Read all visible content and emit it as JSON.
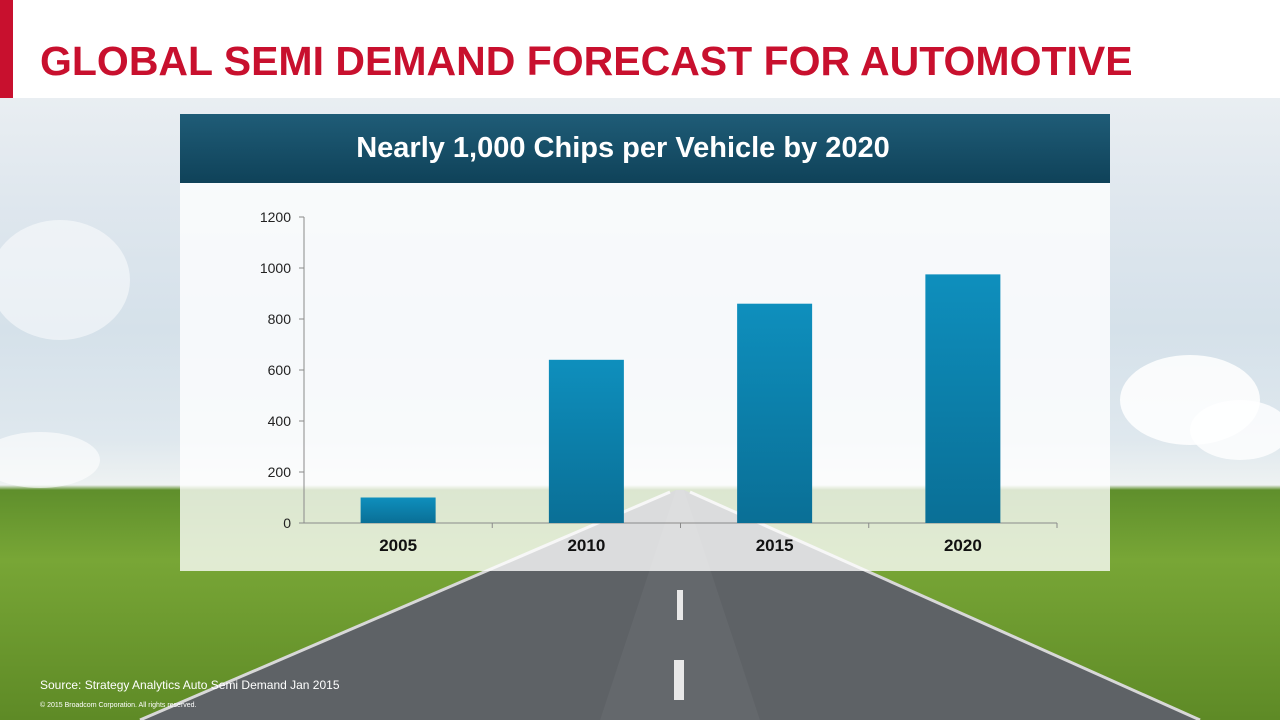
{
  "slide": {
    "title": "GLOBAL SEMI DEMAND FORECAST FOR AUTOMOTIVE",
    "source": "Source: Strategy Analytics Auto Semi Demand Jan 2015",
    "copyright": "© 2015 Broadcom Corporation.   All rights reserved.",
    "accent_color": "#c8102e"
  },
  "chart_data": {
    "type": "bar",
    "title": "Nearly 1,000 Chips per Vehicle by 2020",
    "categories": [
      "2005",
      "2010",
      "2015",
      "2020"
    ],
    "values": [
      100,
      640,
      860,
      975
    ],
    "ylim": [
      0,
      1200
    ],
    "yticks": [
      0,
      200,
      400,
      600,
      800,
      1000,
      1200
    ],
    "xlabel": "",
    "ylabel": "",
    "grid": false,
    "bar_color": "#0a6f96"
  }
}
